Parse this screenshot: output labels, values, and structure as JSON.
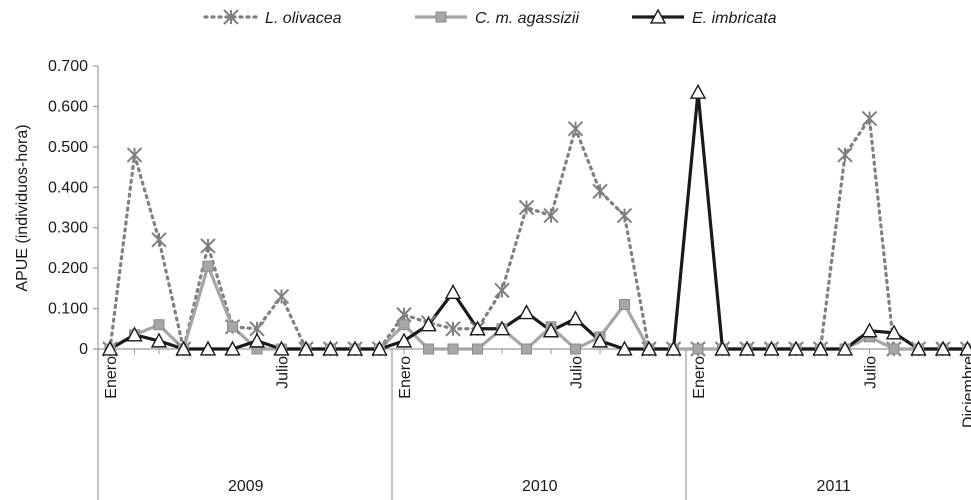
{
  "chart_data": {
    "type": "line",
    "ylabel": "APUE (individuos-hora)",
    "ylim": [
      0,
      0.7
    ],
    "yticks": [
      "0",
      "0.100",
      "0.200",
      "0.300",
      "0.400",
      "0.500",
      "0.600",
      "0.700"
    ],
    "grid": false,
    "legend_position": "top-center",
    "month_labels": [
      {
        "index": 0,
        "label": "Enero"
      },
      {
        "index": 7,
        "label": "Julio"
      },
      {
        "index": 12,
        "label": "Enero"
      },
      {
        "index": 19,
        "label": "Julio"
      },
      {
        "index": 24,
        "label": "Enero"
      },
      {
        "index": 31,
        "label": "Julio"
      },
      {
        "index": 35,
        "label": "Diciembre"
      }
    ],
    "years": [
      {
        "label": "2009",
        "start": 0,
        "end": 11
      },
      {
        "label": "2010",
        "start": 12,
        "end": 23
      },
      {
        "label": "2011",
        "start": 24,
        "end": 35
      }
    ],
    "series": [
      {
        "name": "L. olivacea",
        "color": "#808080",
        "line_style": "dotted",
        "marker": "asterisk",
        "values": [
          0,
          0.48,
          0.27,
          0,
          0.255,
          0.055,
          0.05,
          0.13,
          0,
          0,
          0,
          0,
          0.085,
          0.065,
          0.05,
          0.05,
          0.145,
          0.35,
          0.33,
          0.545,
          0.39,
          0.33,
          0,
          0,
          0,
          0,
          0,
          0,
          0,
          0,
          0.48,
          0.57,
          0,
          0,
          0,
          0
        ]
      },
      {
        "name": "C. m. agassizii",
        "color": "#a6a6a6",
        "line_style": "solid",
        "marker": "square",
        "values": [
          0,
          0.035,
          0.06,
          0,
          0.205,
          0.055,
          0,
          0,
          0,
          0,
          0,
          0,
          0.06,
          0,
          0,
          0,
          0.05,
          0,
          0.055,
          0,
          0.03,
          0.11,
          0,
          0,
          0,
          0,
          0,
          0,
          0,
          0,
          0,
          0.03,
          0,
          0,
          0,
          0
        ]
      },
      {
        "name": "E. imbricata",
        "color": "#1a1a1a",
        "line_style": "solid",
        "marker": "triangle",
        "values": [
          0,
          0.035,
          0.02,
          0,
          0,
          0,
          0.02,
          0,
          0,
          0,
          0,
          0,
          0.02,
          0.06,
          0.14,
          0.05,
          0.05,
          0.09,
          0.045,
          0.075,
          0.02,
          0,
          0,
          0,
          0.635,
          0,
          0,
          0,
          0,
          0,
          0,
          0.045,
          0.04,
          0,
          0,
          0
        ]
      }
    ]
  }
}
